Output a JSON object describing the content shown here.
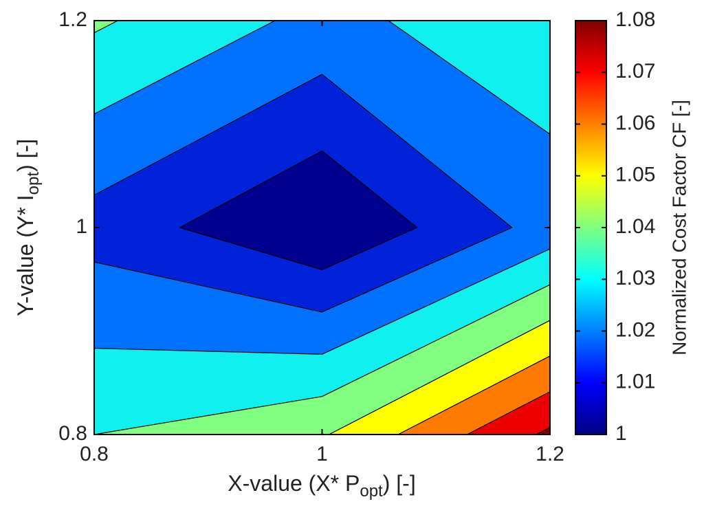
{
  "chart_data": {
    "type": "contourf",
    "x": [
      0.8,
      1,
      1.2
    ],
    "y": [
      0.8,
      1,
      1.2
    ],
    "z": [
      [
        1.04,
        1.049,
        1.082
      ],
      [
        1.016,
        1.0,
        1.024
      ],
      [
        1.0415,
        1.027,
        1.0373
      ]
    ],
    "levels": [
      1,
      1.01,
      1.02,
      1.03,
      1.04,
      1.05,
      1.06,
      1.07,
      1.08
    ],
    "colors": [
      "#00008f",
      "#0022d8",
      "#0072ff",
      "#10f0ef",
      "#80ff80",
      "#ffff00",
      "#ff7a00",
      "#ee0000",
      "#800000"
    ],
    "xlim": [
      0.8,
      1.2
    ],
    "ylim": [
      0.8,
      1.2
    ],
    "xticks": [
      0.8,
      1,
      1.2
    ],
    "yticks": [
      0.8,
      1,
      1.2
    ],
    "xlabel": [
      "X-value (X* P",
      "opt",
      ") [-]"
    ],
    "ylabel": [
      "Y-value (Y* I",
      "opt",
      ") [-]"
    ],
    "colorbar": {
      "label": "Normalized Cost Factor CF [-]",
      "lim": [
        1,
        1.08
      ],
      "ticks": [
        1,
        1.01,
        1.02,
        1.03,
        1.04,
        1.05,
        1.06,
        1.07,
        1.08
      ]
    }
  }
}
